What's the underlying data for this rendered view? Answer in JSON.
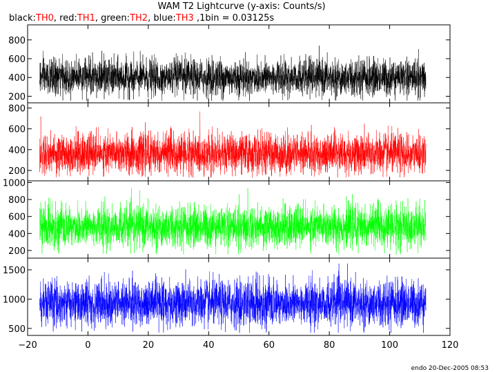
{
  "title": "WAM T2 Lightcurve (y-axis: Counts/s)",
  "subtitle_parts": [
    {
      "text": "black:",
      "color": "#000000"
    },
    {
      "text": "TH0",
      "color": "#ff0000"
    },
    {
      "text": ", red:",
      "color": "#000000"
    },
    {
      "text": "TH1",
      "color": "#ff0000"
    },
    {
      "text": ", green:",
      "color": "#000000"
    },
    {
      "text": "TH2",
      "color": "#ff0000"
    },
    {
      "text": ", blue:",
      "color": "#000000"
    },
    {
      "text": "TH3",
      "color": "#ff0000"
    },
    {
      "text": " ,1bin = 0.03125s",
      "color": "#000000"
    }
  ],
  "footer": "endo 20-Dec-2005 08:53",
  "chart_data": {
    "type": "line",
    "xlim": [
      -20,
      120
    ],
    "x_ticks": [
      -20,
      0,
      20,
      40,
      60,
      80,
      100,
      120
    ],
    "x_range_data": [
      -16,
      112
    ],
    "bin_seconds": 0.03125,
    "grid": false,
    "panels": [
      {
        "name": "TH0",
        "color": "#000000",
        "ylim": [
          130,
          960
        ],
        "y_ticks": [
          200,
          400,
          600,
          800
        ],
        "mean": 400,
        "spread": 95,
        "range": [
          150,
          880
        ]
      },
      {
        "name": "TH1",
        "color": "#ff0000",
        "ylim": [
          100,
          850
        ],
        "y_ticks": [
          200,
          400,
          600,
          800
        ],
        "mean": 360,
        "spread": 95,
        "range": [
          130,
          800
        ]
      },
      {
        "name": "TH2",
        "color": "#00ff00",
        "ylim": [
          110,
          1020
        ],
        "y_ticks": [
          200,
          400,
          600,
          800,
          1000
        ],
        "mean": 480,
        "spread": 120,
        "range": [
          150,
          1000
        ]
      },
      {
        "name": "TH3",
        "color": "#0000ff",
        "ylim": [
          380,
          1700
        ],
        "y_ticks": [
          500,
          1000,
          1500
        ],
        "mean": 930,
        "spread": 190,
        "range": [
          420,
          1620
        ]
      }
    ]
  }
}
